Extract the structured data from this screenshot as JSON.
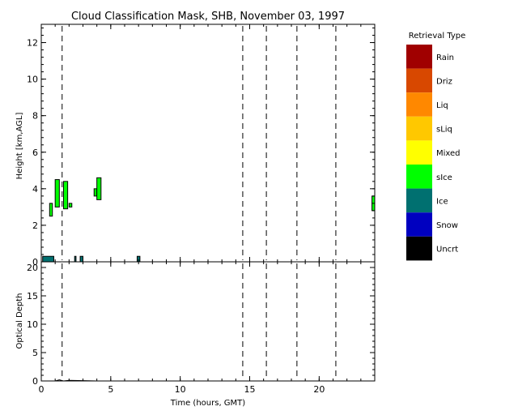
{
  "chart_data": {
    "title": "Cloud Classification Mask, SHB, November 03, 1997",
    "xlabel": "Time (hours, GMT)",
    "xlim": [
      0,
      24
    ],
    "x_ticks": [
      0,
      5,
      10,
      15,
      20
    ],
    "vertical_markers_hours": [
      1.5,
      14.5,
      16.2,
      18.4,
      21.2
    ],
    "panels": [
      {
        "type": "heatmap",
        "ylabel": "Height [km,AGL]",
        "ylim": [
          0,
          13
        ],
        "y_ticks": [
          0,
          2,
          4,
          6,
          8,
          10,
          12
        ],
        "cloud_patches": [
          {
            "t0": 0.1,
            "t1": 0.9,
            "h0": 0.0,
            "h1": 0.3,
            "class": "Ice"
          },
          {
            "t0": 0.6,
            "t1": 0.8,
            "h0": 2.5,
            "h1": 3.2,
            "class": "sIce"
          },
          {
            "t0": 1.0,
            "t1": 1.3,
            "h0": 3.0,
            "h1": 4.5,
            "class": "sIce"
          },
          {
            "t0": 1.6,
            "t1": 1.9,
            "h0": 2.9,
            "h1": 4.4,
            "class": "sIce"
          },
          {
            "t0": 2.0,
            "t1": 2.2,
            "h0": 3.0,
            "h1": 3.2,
            "class": "sIce"
          },
          {
            "t0": 2.4,
            "t1": 2.5,
            "h0": 0.0,
            "h1": 0.3,
            "class": "Ice"
          },
          {
            "t0": 2.8,
            "t1": 3.0,
            "h0": 0.0,
            "h1": 0.3,
            "class": "Ice"
          },
          {
            "t0": 3.8,
            "t1": 4.0,
            "h0": 3.6,
            "h1": 4.0,
            "class": "sIce"
          },
          {
            "t0": 4.0,
            "t1": 4.3,
            "h0": 3.4,
            "h1": 4.6,
            "class": "sIce"
          },
          {
            "t0": 6.9,
            "t1": 7.1,
            "h0": 0.0,
            "h1": 0.3,
            "class": "Ice"
          },
          {
            "t0": 23.8,
            "t1": 24.0,
            "h0": 2.8,
            "h1": 3.6,
            "class": "sIce"
          }
        ]
      },
      {
        "type": "line",
        "ylabel": "Optical Depth",
        "ylim": [
          0,
          21
        ],
        "y_ticks": [
          0,
          5,
          10,
          15,
          20
        ],
        "series": [
          {
            "x": [
              0.0,
              1.0,
              1.3,
              1.6,
              2.0,
              4.0,
              7.0,
              24.0
            ],
            "y": [
              0,
              0,
              0.2,
              0,
              0.1,
              0,
              0,
              0
            ]
          }
        ]
      }
    ],
    "legend": {
      "title": "Retrieval Type",
      "placement": "right",
      "entries": [
        {
          "label": "Rain",
          "color": "#a00000"
        },
        {
          "label": "Driz",
          "color": "#d84800"
        },
        {
          "label": "Liq",
          "color": "#ff8800"
        },
        {
          "label": "sLiq",
          "color": "#ffc800"
        },
        {
          "label": "Mixed",
          "color": "#ffff00"
        },
        {
          "label": "sIce",
          "color": "#00ff00"
        },
        {
          "label": "Ice",
          "color": "#007070"
        },
        {
          "label": "Snow",
          "color": "#0000c0"
        },
        {
          "label": "Uncrt",
          "color": "#000000"
        }
      ]
    }
  }
}
